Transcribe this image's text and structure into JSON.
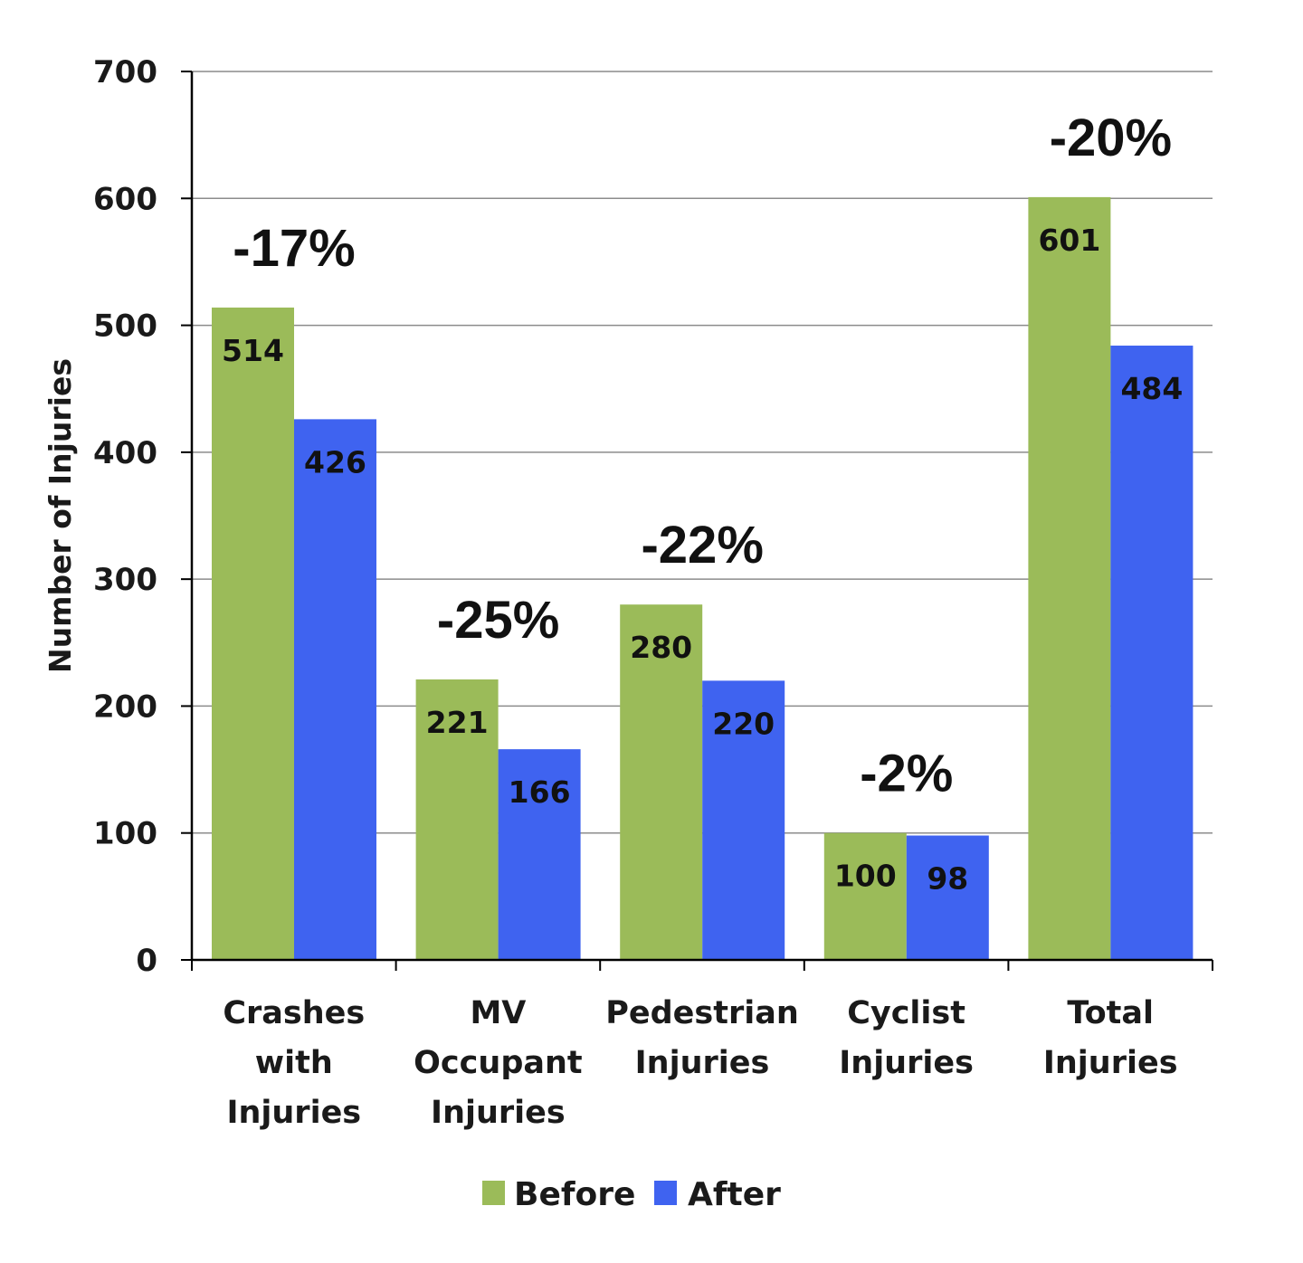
{
  "chart_data": {
    "type": "bar",
    "ylabel": "Number of Injuries",
    "xlabel": "",
    "ylim": [
      0,
      700
    ],
    "yticks": [
      0,
      100,
      200,
      300,
      400,
      500,
      600,
      700
    ],
    "grid": true,
    "legend_position": "bottom",
    "categories": [
      [
        "Crashes",
        "with",
        "Injuries"
      ],
      [
        "MV",
        "Occupant",
        "Injuries"
      ],
      [
        "Pedestrian",
        "Injuries"
      ],
      [
        "Cyclist",
        "Injuries"
      ],
      [
        "Total",
        "Injuries"
      ]
    ],
    "series": [
      {
        "name": "Before",
        "color": "#9bbb59",
        "values": [
          514,
          221,
          280,
          100,
          601
        ]
      },
      {
        "name": "After",
        "color": "#3f63f0",
        "values": [
          426,
          166,
          220,
          98,
          484
        ]
      }
    ],
    "annotations": [
      "-17%",
      "-25%",
      "-22%",
      "-2%",
      "-20%"
    ]
  }
}
